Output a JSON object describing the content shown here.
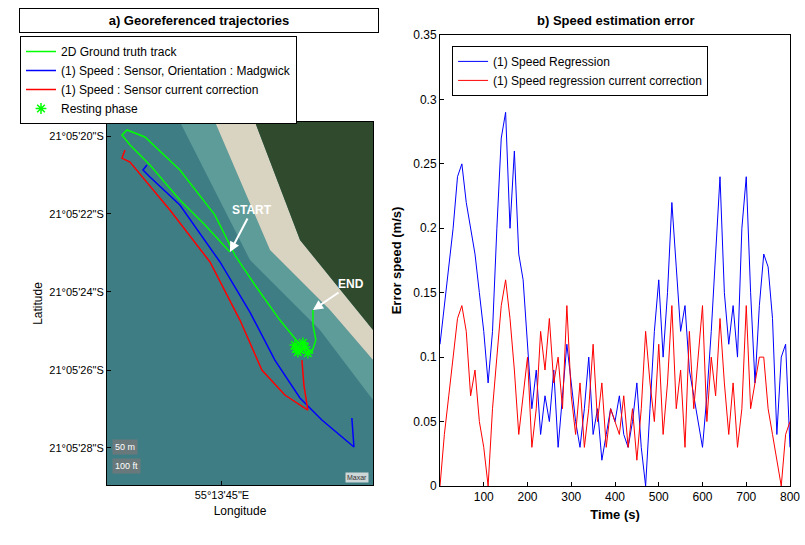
{
  "chart_data": [
    {
      "type": "line",
      "title": "a) Georeferenced trajectories",
      "x_label": "Longitude",
      "y_label": "Latitude",
      "xlim": [
        55.228292,
        55.230317
      ],
      "ylim": [
        -21.091375,
        -21.088789
      ],
      "xticks": [
        {
          "value": 55.229167,
          "label": "55°13'45\"E"
        }
      ],
      "yticks": [
        {
          "value": -21.091111,
          "label": "21°05'28\"S"
        },
        {
          "value": -21.090556,
          "label": "21°05'26\"S"
        },
        {
          "value": -21.09,
          "label": "21°05'24\"S"
        },
        {
          "value": -21.089444,
          "label": "21°05'22\"S"
        },
        {
          "value": -21.088889,
          "label": "21°05'20\"S"
        }
      ],
      "grid": false,
      "legend": "above",
      "series": [
        {
          "name": "2D Ground truth track",
          "color": "#00ff00",
          "line_style": "solid",
          "x": [
            55.229228,
            55.229038,
            55.228847,
            55.228619,
            55.228467,
            55.228406,
            55.228444,
            55.228581,
            55.228847,
            55.229114,
            55.229266,
            55.229418,
            55.229608,
            55.229745,
            55.229852,
            55.229882,
            55.22986,
            55.22986
          ],
          "y": [
            -21.089715,
            -21.089523,
            -21.089345,
            -21.089096,
            -21.088953,
            -21.088882,
            -21.088846,
            -21.088896,
            -21.089131,
            -21.089452,
            -21.089737,
            -21.08995,
            -21.0902,
            -21.090356,
            -21.090428,
            -21.090342,
            -21.090235,
            -21.090128
          ]
        },
        {
          "name": "(1) Speed : Sensor, Orientation : Madgwick",
          "color": "#0000ff",
          "line_style": "solid",
          "x": [
            55.228596,
            55.228566,
            55.228619,
            55.228847,
            55.229152,
            55.22938,
            55.22957,
            55.229761,
            55.229928,
            55.230103,
            55.230172,
            55.230156
          ],
          "y": [
            -21.089096,
            -21.089131,
            -21.089181,
            -21.08938,
            -21.089786,
            -21.090143,
            -21.090485,
            -21.090755,
            -21.090912,
            -21.091054,
            -21.091104,
            -21.090898
          ]
        },
        {
          "name": "(1) Speed : Sensor current correction",
          "color": "#ff0000",
          "line_style": "solid",
          "x": [
            55.228429,
            55.228406,
            55.228467,
            55.228771,
            55.229076,
            55.229304,
            55.229471,
            55.229646,
            55.229821,
            55.229791,
            55.229776
          ],
          "y": [
            -21.088989,
            -21.089046,
            -21.089074,
            -21.089416,
            -21.089786,
            -21.0902,
            -21.090556,
            -21.090734,
            -21.090841,
            -21.090663,
            -21.090485
          ]
        },
        {
          "name": "Resting phase",
          "color": "#00ff00",
          "type": "scatter",
          "marker": "asterisk",
          "x": [
            55.229723,
            55.229761,
            55.229799,
            55.229745,
            55.229783,
            55.229821,
            55.22973
          ],
          "y": [
            -21.090378,
            -21.090413,
            -21.090392,
            -21.090428,
            -21.090363,
            -21.090435,
            -21.090406
          ]
        }
      ],
      "annotations": [
        "START",
        "END",
        "50 m",
        "100 ft",
        "Maxar"
      ]
    },
    {
      "type": "line",
      "title": "b) Speed estimation error",
      "x_label": "Time (s)",
      "y_label": "Error speed (m/s)",
      "xlim": [
        0,
        800
      ],
      "xticks": [
        100,
        200,
        300,
        400,
        500,
        600,
        700,
        800
      ],
      "ylim": [
        0,
        0.35
      ],
      "yticks": [
        0,
        0.05,
        0.1,
        0.15,
        0.2,
        0.25,
        0.3,
        0.35
      ],
      "grid": false,
      "legend": "upper left",
      "x": [
        0,
        10,
        20,
        30,
        40,
        50,
        60,
        70,
        80,
        90,
        100,
        110,
        120,
        130,
        140,
        150,
        160,
        170,
        180,
        190,
        200,
        210,
        220,
        230,
        240,
        250,
        260,
        270,
        280,
        290,
        300,
        310,
        320,
        330,
        340,
        350,
        360,
        370,
        380,
        390,
        400,
        410,
        420,
        430,
        440,
        450,
        460,
        470,
        480,
        490,
        500,
        510,
        520,
        530,
        540,
        550,
        560,
        570,
        580,
        590,
        600,
        610,
        620,
        630,
        640,
        650,
        660,
        670,
        680,
        690,
        700,
        710,
        720,
        730,
        740,
        750,
        760,
        770,
        780,
        790,
        800
      ],
      "series": [
        {
          "name": "(1) Speed Regression",
          "color": "#0000ff",
          "line_style": "solid",
          "values": [
            0.11,
            0.14,
            0.17,
            0.2,
            0.24,
            0.25,
            0.22,
            0.2,
            0.18,
            0.15,
            0.12,
            0.08,
            0.12,
            0.2,
            0.27,
            0.29,
            0.2,
            0.26,
            0.18,
            0.16,
            0.11,
            0.06,
            0.09,
            0.04,
            0.07,
            0.05,
            0.09,
            0.03,
            0.07,
            0.11,
            0.08,
            0.05,
            0.03,
            0.06,
            0.1,
            0.04,
            0.06,
            0.02,
            0.04,
            0.06,
            0.05,
            0.07,
            0.04,
            0.03,
            0.05,
            0.08,
            0.03,
            0,
            0.06,
            0.12,
            0.16,
            0.1,
            0.15,
            0.22,
            0.17,
            0.12,
            0.14,
            0.09,
            0.07,
            0.05,
            0.03,
            0.07,
            0.12,
            0.18,
            0.24,
            0.15,
            0.11,
            0.14,
            0.1,
            0.2,
            0.24,
            0.15,
            0.08,
            0.14,
            0.18,
            0.17,
            0.13,
            0.04,
            0.1,
            0.11,
            0.03
          ]
        },
        {
          "name": "(1) Speed regression current correction",
          "color": "#ff0000",
          "line_style": "solid",
          "values": [
            0,
            0.04,
            0.07,
            0.1,
            0.13,
            0.14,
            0.12,
            0.07,
            0.09,
            0.05,
            0.03,
            0,
            0.06,
            0.1,
            0.14,
            0.16,
            0.13,
            0.09,
            0.04,
            0.07,
            0.1,
            0.03,
            0.06,
            0.12,
            0.09,
            0.13,
            0.08,
            0.1,
            0.06,
            0.14,
            0.07,
            0.04,
            0.08,
            0.03,
            0.06,
            0.11,
            0.05,
            0.08,
            0.03,
            0.06,
            0.05,
            0.04,
            0.07,
            0.03,
            0.06,
            0.02,
            0.06,
            0.12,
            0.08,
            0.05,
            0.11,
            0.04,
            0.08,
            0.14,
            0.06,
            0.09,
            0.03,
            0.12,
            0.06,
            0.1,
            0.14,
            0.05,
            0.1,
            0.07,
            0.13,
            0.08,
            0.04,
            0.08,
            0.03,
            0.06,
            0.14,
            0.06,
            0.08,
            0.1,
            0.1,
            0.06,
            0.04,
            0.02,
            0,
            0.04,
            0.05
          ]
        }
      ]
    }
  ]
}
